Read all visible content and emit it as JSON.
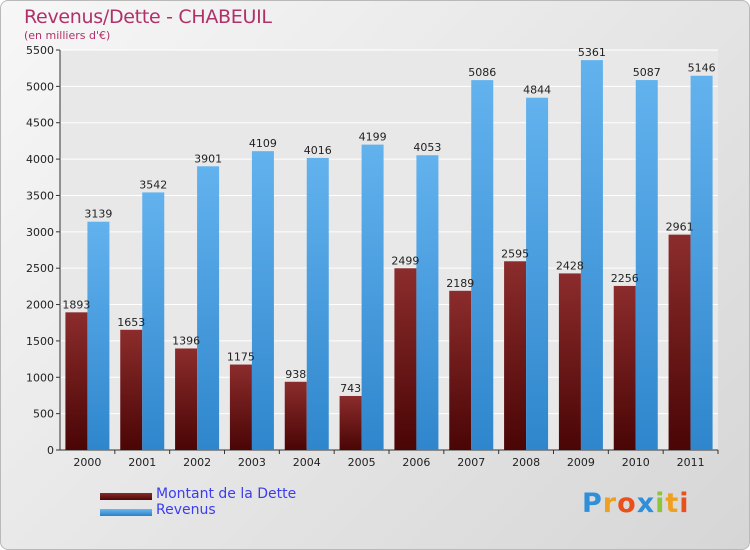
{
  "title": "Revenus/Dette - CHABEUIL",
  "subtitle": "(en milliers d'€)",
  "chart_data": {
    "type": "bar",
    "categories": [
      "2000",
      "2001",
      "2002",
      "2003",
      "2004",
      "2005",
      "2006",
      "2007",
      "2008",
      "2009",
      "2010",
      "2011"
    ],
    "series": [
      {
        "name": "Montant de la Dette",
        "values": [
          1893,
          1653,
          1396,
          1175,
          938,
          743,
          2499,
          2189,
          2595,
          2428,
          2256,
          2961
        ],
        "color": "#7a1a1a"
      },
      {
        "name": "Revenus",
        "values": [
          3139,
          3542,
          3901,
          4109,
          4016,
          4199,
          4053,
          5086,
          4844,
          5361,
          5087,
          5146
        ],
        "color": "#4aa0e6"
      }
    ],
    "y_ticks": [
      0,
      500,
      1000,
      1500,
      2000,
      2500,
      3000,
      3500,
      4000,
      4500,
      5000,
      5500
    ],
    "ylim": [
      0,
      5500
    ],
    "grid": true,
    "legend_position": "bottom-left"
  },
  "legend": {
    "debt_label": "Montant de la Dette",
    "revenue_label": "Revenus"
  },
  "logo": {
    "letters": [
      "P",
      "r",
      "o",
      "x",
      "i",
      "t",
      "i"
    ],
    "colors": [
      "#2f8fd8",
      "#f0a020",
      "#e8501c",
      "#2f8fd8",
      "#8cc43c",
      "#f0a020",
      "#e8501c"
    ]
  }
}
